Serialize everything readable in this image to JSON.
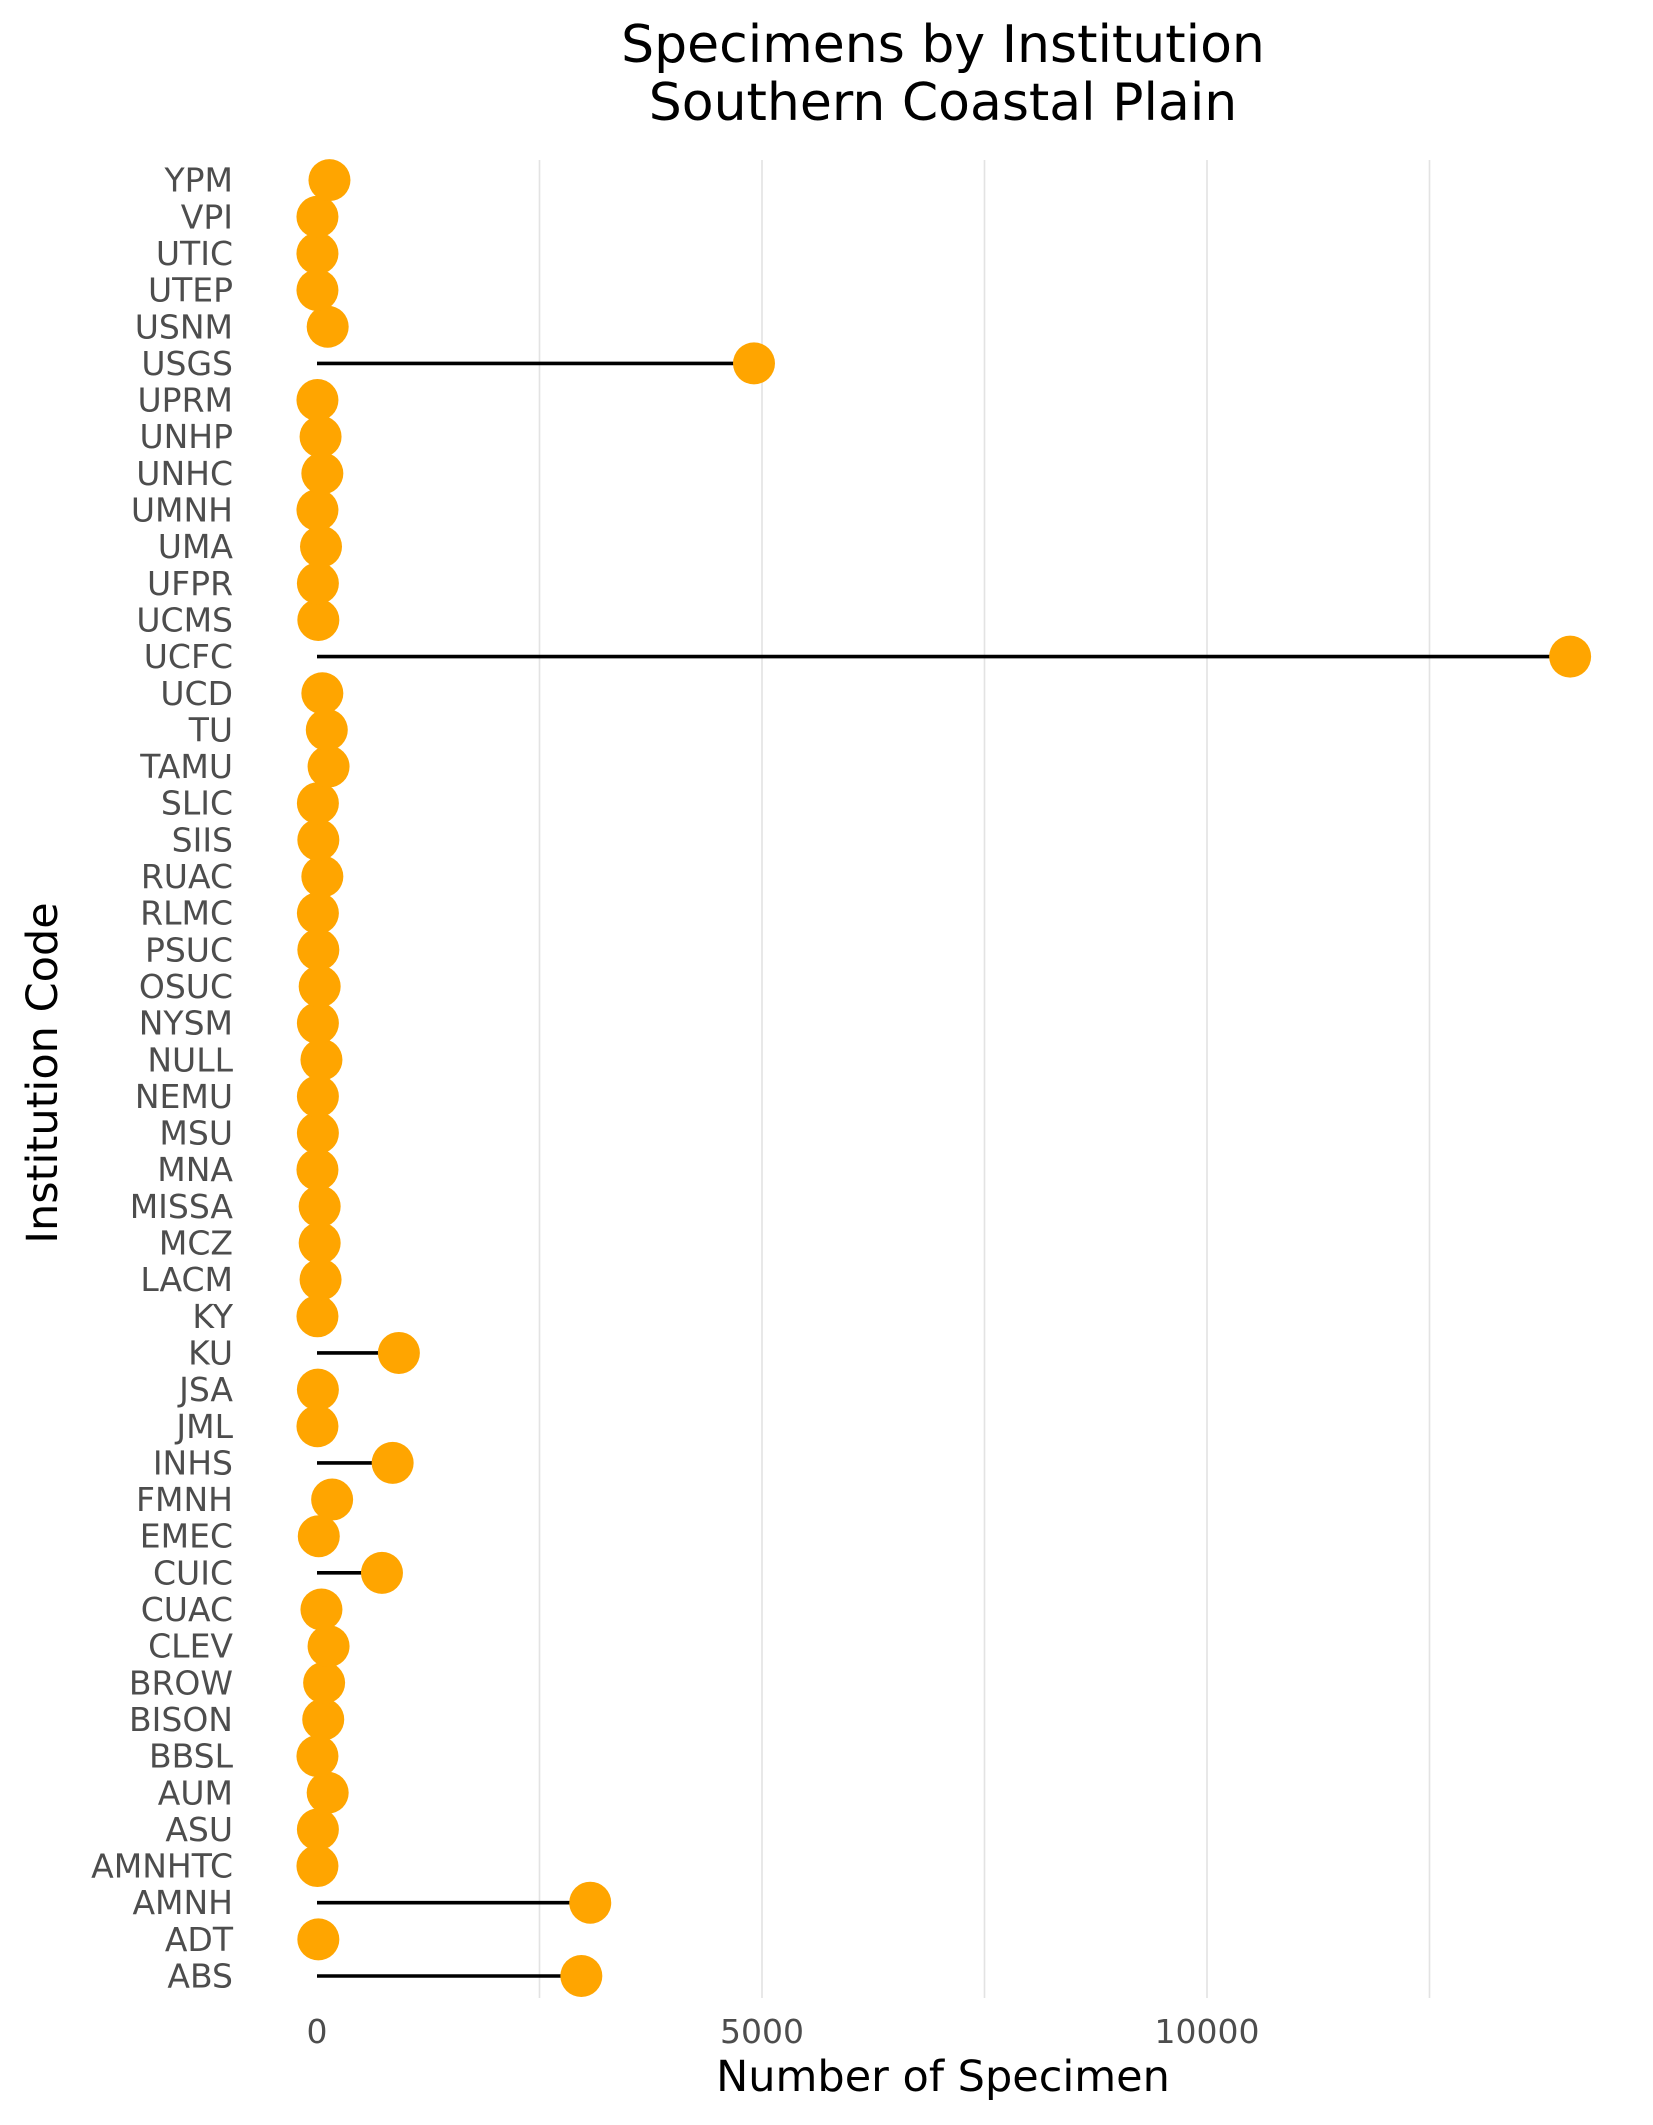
{
  "chart_data": {
    "type": "lollipop",
    "orientation": "horizontal",
    "title": [
      "Specimens by Institution",
      "Southern Coastal Plain"
    ],
    "xlabel": "Number of Specimen",
    "ylabel": "Institution Code",
    "xlim": [
      0,
      14100
    ],
    "xticks": [
      0,
      5000,
      10000
    ],
    "xtick_labels": [
      "0",
      "5000",
      "10000"
    ],
    "minor_gridlines": [
      2500,
      7500,
      12500
    ],
    "grid": true,
    "colors": {
      "point": "#FFA500",
      "stem": "#000000",
      "grid": "#e3e3e3",
      "tick_text": "#4d4d4d"
    },
    "categories": [
      "ABS",
      "ADT",
      "AMNH",
      "AMNHTC",
      "ASU",
      "AUM",
      "BBSL",
      "BISON",
      "BROW",
      "CLEV",
      "CUAC",
      "CUIC",
      "EMEC",
      "FMNH",
      "INHS",
      "JML",
      "JSA",
      "KU",
      "KY",
      "LACM",
      "MCZ",
      "MISSA",
      "MNA",
      "MSU",
      "NEMU",
      "NULL",
      "NYSM",
      "OSUC",
      "PSUC",
      "RLMC",
      "RUAC",
      "SIIS",
      "SLIC",
      "TAMU",
      "TU",
      "UCD",
      "UCFC",
      "UCMS",
      "UFPR",
      "UMA",
      "UMNH",
      "UNHC",
      "UNHP",
      "UPRM",
      "USGS",
      "USNM",
      "UTEP",
      "UTIC",
      "VPI",
      "YPM"
    ],
    "values": [
      2970,
      15,
      3070,
      5,
      10,
      120,
      5,
      70,
      80,
      130,
      50,
      730,
      20,
      170,
      850,
      5,
      10,
      920,
      5,
      40,
      30,
      30,
      5,
      10,
      10,
      50,
      10,
      30,
      15,
      10,
      60,
      15,
      10,
      130,
      110,
      60,
      14080,
      15,
      10,
      45,
      5,
      60,
      40,
      5,
      4910,
      120,
      5,
      5,
      5,
      140
    ]
  }
}
